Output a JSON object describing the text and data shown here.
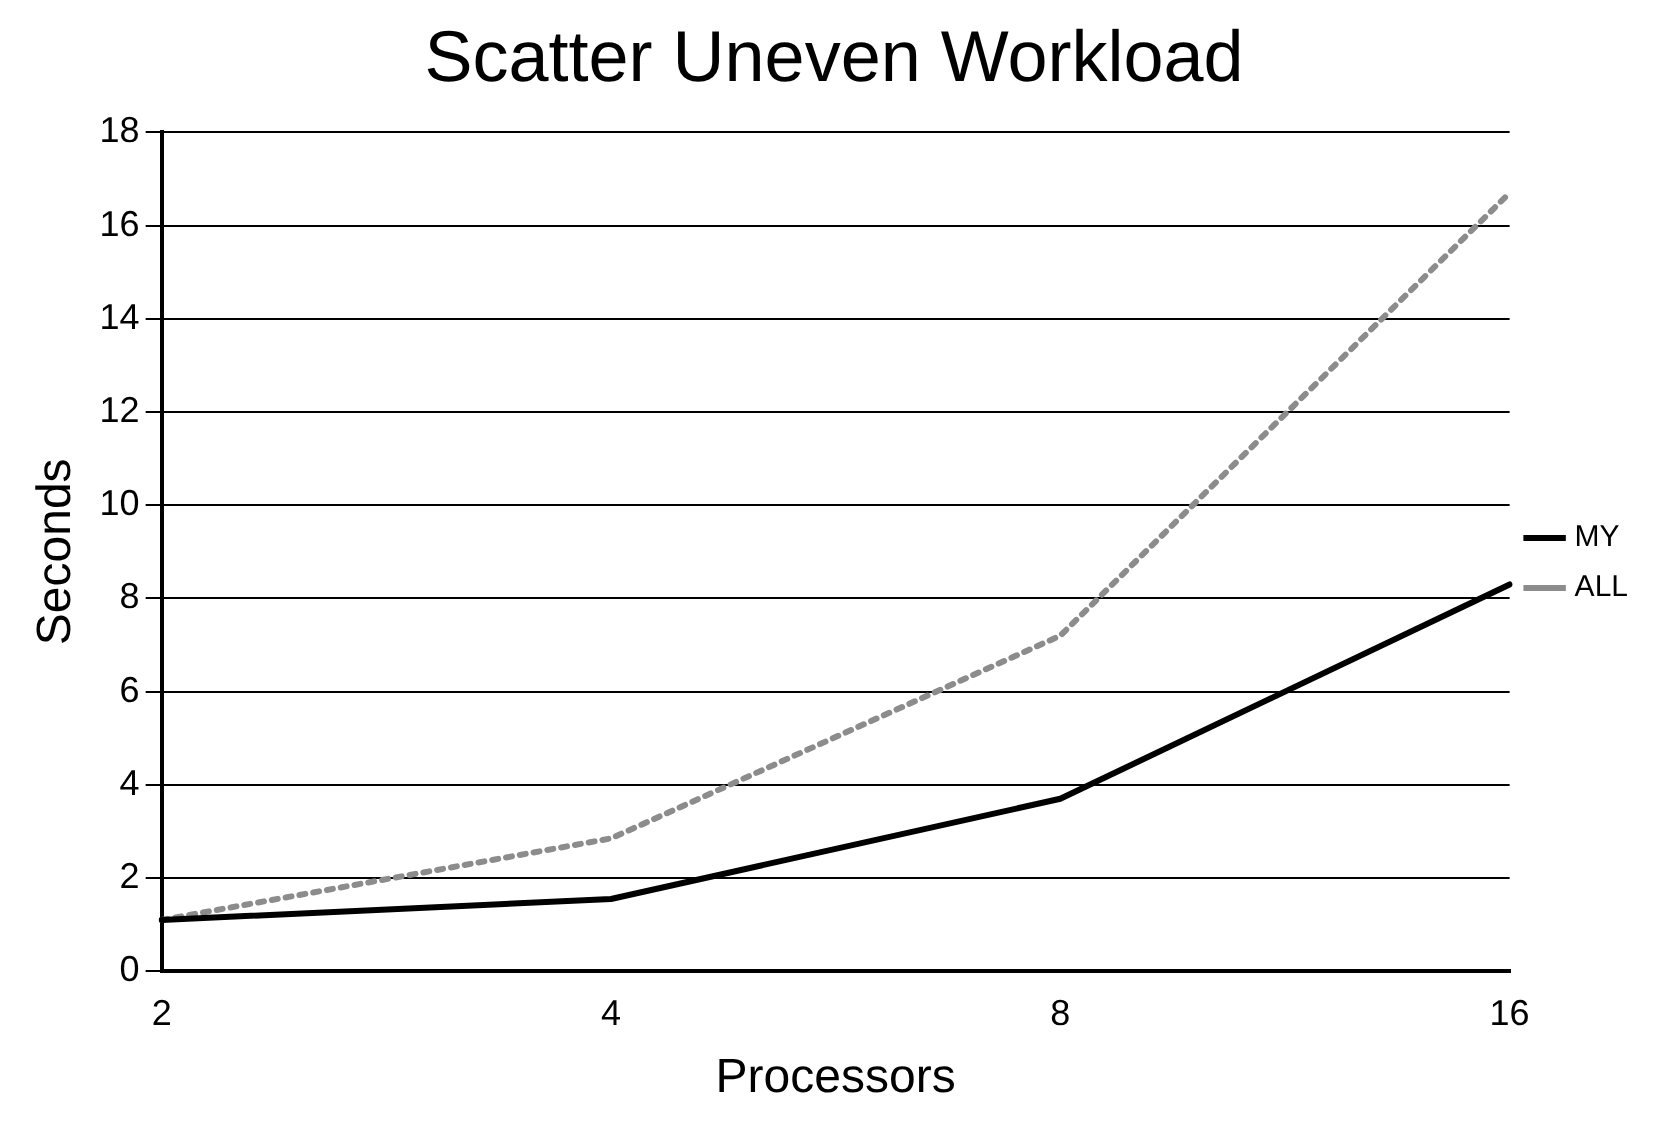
{
  "chart_data": {
    "type": "line",
    "title": "Scatter Uneven Workload",
    "xlabel": "Processors",
    "ylabel": "Seconds",
    "categories": [
      "2",
      "4",
      "8",
      "16"
    ],
    "series": [
      {
        "name": "MY",
        "color": "#000000",
        "line_style": "solid",
        "values": [
          1.1,
          1.55,
          3.7,
          8.3
        ]
      },
      {
        "name": "ALL",
        "color": "#8c8c8c",
        "line_style": "dotted",
        "values": [
          1.1,
          2.85,
          7.2,
          16.7
        ]
      }
    ],
    "ylim": [
      0,
      18
    ],
    "yticks": [
      0,
      2,
      4,
      6,
      8,
      10,
      12,
      14,
      16,
      18
    ],
    "grid": "y",
    "legend": "right",
    "marker": "none"
  }
}
